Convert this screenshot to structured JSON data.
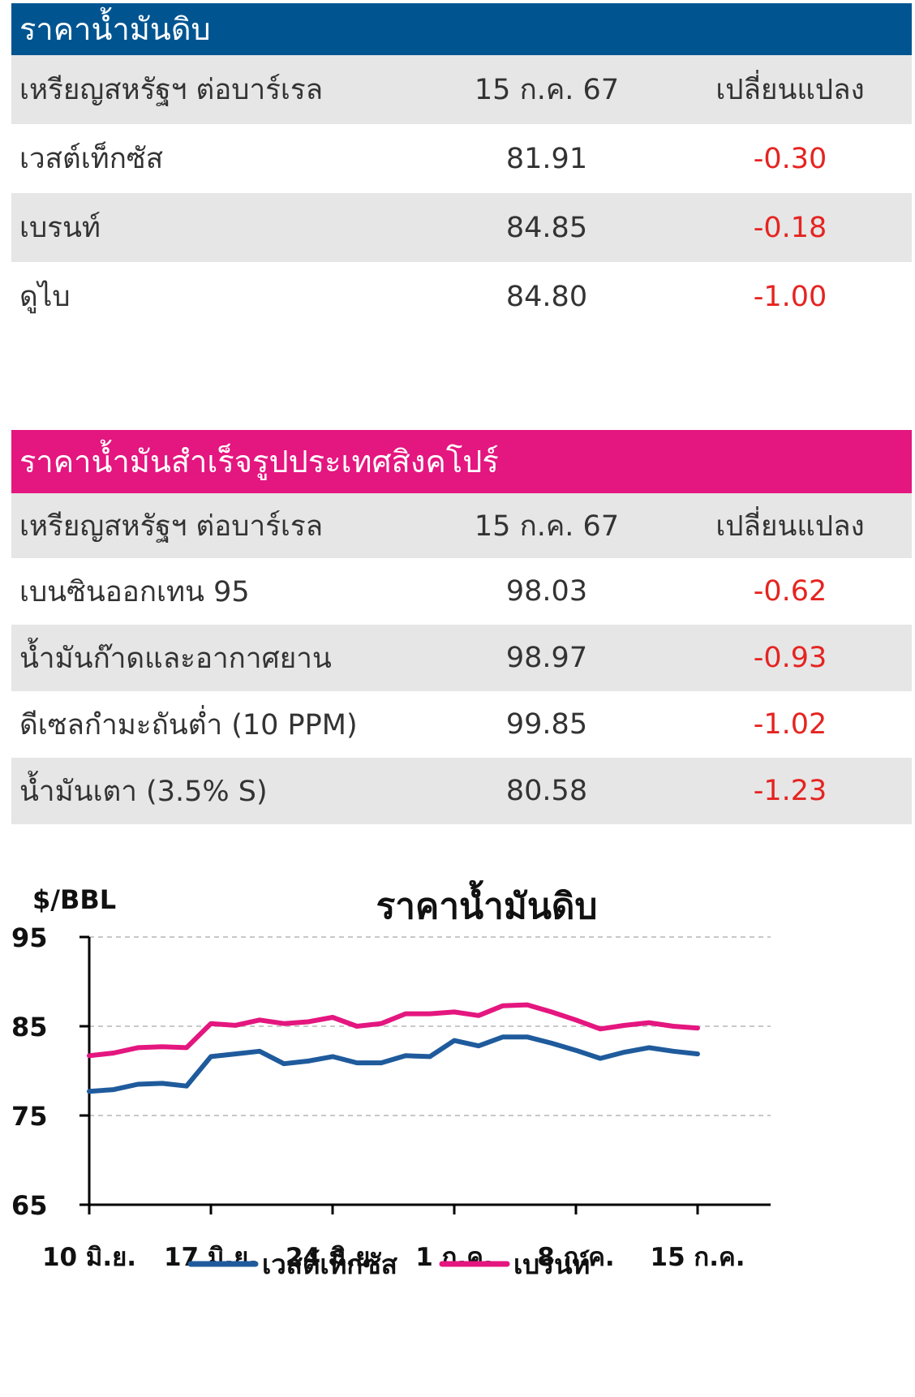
{
  "crude_table": {
    "title": "ราคาน้ำมันดิบ",
    "headers": [
      "เหรียญสหรัฐฯ ต่อบาร์เรล",
      "15 ก.ค. 67",
      "เปลี่ยนแปลง"
    ],
    "rows": [
      {
        "name": "เวสต์เท็กซัส",
        "price": "81.91",
        "change": "-0.30"
      },
      {
        "name": "เบรนท์",
        "price": "84.85",
        "change": "-0.18"
      },
      {
        "name": "ดูไบ",
        "price": "84.80",
        "change": "-1.00"
      }
    ]
  },
  "singapore_table": {
    "title": "ราคาน้ำมันสำเร็จรูปประเทศสิงคโปร์",
    "headers": [
      "เหรียญสหรัฐฯ ต่อบาร์เรล",
      "15 ก.ค. 67",
      "เปลี่ยนแปลง"
    ],
    "rows": [
      {
        "name": "เบนซินออกเทน 95",
        "price": "98.03",
        "change": "-0.62"
      },
      {
        "name": "น้ำมันก๊าดและอากาศยาน",
        "price": "98.97",
        "change": "-0.93"
      },
      {
        "name": "ดีเซลกำมะถันต่ำ (10 PPM)",
        "price": "99.85",
        "change": "-1.02"
      },
      {
        "name": "น้ำมันเตา (3.5% S)",
        "price": "80.58",
        "change": "-1.23"
      }
    ]
  },
  "colors": {
    "crude_header": "#005591",
    "singapore_header": "#e4167f",
    "negative": "#e52421",
    "wti_line": "#1f5b9c",
    "brent_line": "#e4167f"
  },
  "chart_data": {
    "type": "line",
    "title": "ราคาน้ำมันดิบ",
    "ylabel": "$/BBL",
    "xlabel": "",
    "ylim": [
      65,
      95
    ],
    "yticks": [
      95,
      85,
      75,
      65
    ],
    "gridlines": [
      95,
      85,
      75
    ],
    "x_tick_labels": [
      "10 มิ.ย.",
      "17 มิ.ย.",
      "24 มิ.ย.",
      "1 ก.ค.",
      "8 ก.ค.",
      "15 ก.ค."
    ],
    "x": [
      "2024-06-10",
      "2024-06-11",
      "2024-06-12",
      "2024-06-13",
      "2024-06-14",
      "2024-06-17",
      "2024-06-18",
      "2024-06-19",
      "2024-06-20",
      "2024-06-21",
      "2024-06-24",
      "2024-06-25",
      "2024-06-26",
      "2024-06-27",
      "2024-06-28",
      "2024-07-01",
      "2024-07-02",
      "2024-07-03",
      "2024-07-04",
      "2024-07-05",
      "2024-07-08",
      "2024-07-09",
      "2024-07-10",
      "2024-07-11",
      "2024-07-12",
      "2024-07-15"
    ],
    "series": [
      {
        "name": "เวสต์เท็กซัส",
        "color": "#1f5b9c",
        "values": [
          77.7,
          77.9,
          78.5,
          78.6,
          78.3,
          81.6,
          81.9,
          82.2,
          80.8,
          81.1,
          81.6,
          80.9,
          80.9,
          81.7,
          81.6,
          83.4,
          82.8,
          83.8,
          83.8,
          83.1,
          82.3,
          81.4,
          82.1,
          82.6,
          82.2,
          81.9
        ]
      },
      {
        "name": "เบรนท์",
        "color": "#e4167f",
        "values": [
          81.7,
          82.0,
          82.6,
          82.7,
          82.6,
          85.3,
          85.1,
          85.7,
          85.3,
          85.5,
          86.0,
          85.0,
          85.3,
          86.4,
          86.4,
          86.6,
          86.2,
          87.3,
          87.4,
          86.6,
          85.7,
          84.7,
          85.1,
          85.4,
          85.0,
          84.8
        ]
      }
    ],
    "legend": [
      "เวสต์เท็กซัส",
      "เบรนท์"
    ],
    "legend_position": "bottom",
    "grid": true
  }
}
